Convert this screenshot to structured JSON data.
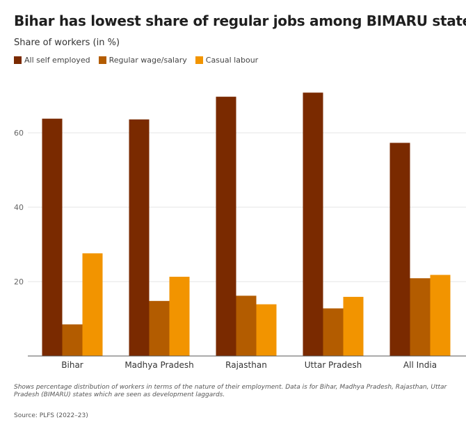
{
  "chart_data": {
    "type": "bar",
    "title": "Bihar has lowest share of regular jobs among BIMARU states",
    "subtitle": "Share of workers (in %)",
    "categories": [
      "Bihar",
      "Madhya Pradesh",
      "Rajasthan",
      "Uttar Pradesh",
      "All India"
    ],
    "series": [
      {
        "name": "All self employed",
        "color": "#7a2a00",
        "values": [
          63.8,
          63.6,
          69.7,
          70.8,
          57.3
        ]
      },
      {
        "name": "Regular wage/salary",
        "color": "#b35c00",
        "values": [
          8.5,
          14.8,
          16.2,
          12.8,
          20.9
        ]
      },
      {
        "name": "Casual labour",
        "color": "#f29400",
        "values": [
          27.6,
          21.3,
          13.9,
          15.9,
          21.8
        ]
      }
    ],
    "yticks": [
      20,
      40,
      60
    ],
    "ylim": [
      0,
      75
    ],
    "grid": true,
    "legend_position": "top-left"
  },
  "note": "Shows percentage distribution of workers in terms of the nature of their employment. Data is for Bihar, Madhya Pradesh, Rajasthan, Uttar Pradesh (BIMARU) states which are seen as development laggards.",
  "source": "Source: PLFS (2022–23)"
}
